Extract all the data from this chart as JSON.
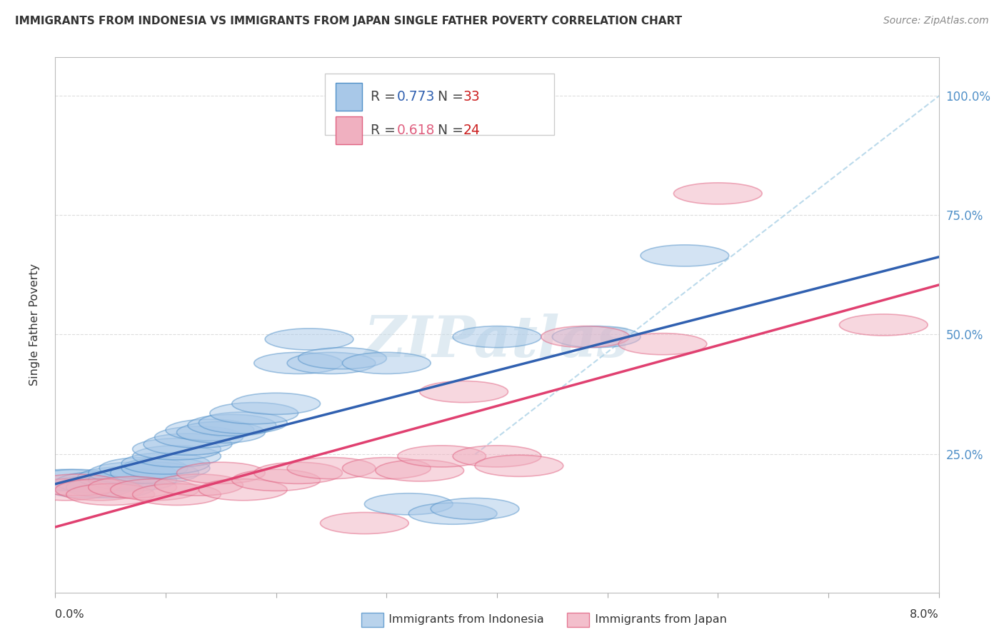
{
  "title": "IMMIGRANTS FROM INDONESIA VS IMMIGRANTS FROM JAPAN SINGLE FATHER POVERTY CORRELATION CHART",
  "source": "Source: ZipAtlas.com",
  "ylabel": "Single Father Poverty",
  "y_tick_labels": [
    "25.0%",
    "50.0%",
    "75.0%",
    "100.0%"
  ],
  "y_tick_values": [
    0.25,
    0.5,
    0.75,
    1.0
  ],
  "indonesia_scatter": [
    [
      0.001,
      0.195
    ],
    [
      0.002,
      0.195
    ],
    [
      0.003,
      0.18
    ],
    [
      0.004,
      0.19
    ],
    [
      0.005,
      0.18
    ],
    [
      0.006,
      0.2
    ],
    [
      0.007,
      0.195
    ],
    [
      0.007,
      0.21
    ],
    [
      0.008,
      0.22
    ],
    [
      0.009,
      0.21
    ],
    [
      0.01,
      0.22
    ],
    [
      0.01,
      0.23
    ],
    [
      0.011,
      0.245
    ],
    [
      0.011,
      0.26
    ],
    [
      0.012,
      0.27
    ],
    [
      0.013,
      0.285
    ],
    [
      0.014,
      0.3
    ],
    [
      0.015,
      0.295
    ],
    [
      0.016,
      0.31
    ],
    [
      0.017,
      0.315
    ],
    [
      0.018,
      0.335
    ],
    [
      0.02,
      0.355
    ],
    [
      0.022,
      0.44
    ],
    [
      0.023,
      0.49
    ],
    [
      0.025,
      0.44
    ],
    [
      0.026,
      0.45
    ],
    [
      0.03,
      0.44
    ],
    [
      0.032,
      0.145
    ],
    [
      0.036,
      0.125
    ],
    [
      0.038,
      0.135
    ],
    [
      0.04,
      0.495
    ],
    [
      0.049,
      0.495
    ],
    [
      0.057,
      0.665
    ]
  ],
  "japan_scatter": [
    [
      0.001,
      0.175
    ],
    [
      0.002,
      0.185
    ],
    [
      0.004,
      0.175
    ],
    [
      0.005,
      0.165
    ],
    [
      0.007,
      0.18
    ],
    [
      0.009,
      0.175
    ],
    [
      0.011,
      0.165
    ],
    [
      0.013,
      0.185
    ],
    [
      0.015,
      0.21
    ],
    [
      0.017,
      0.175
    ],
    [
      0.02,
      0.195
    ],
    [
      0.022,
      0.21
    ],
    [
      0.025,
      0.22
    ],
    [
      0.028,
      0.105
    ],
    [
      0.03,
      0.22
    ],
    [
      0.033,
      0.215
    ],
    [
      0.035,
      0.245
    ],
    [
      0.037,
      0.38
    ],
    [
      0.04,
      0.245
    ],
    [
      0.042,
      0.225
    ],
    [
      0.048,
      0.495
    ],
    [
      0.055,
      0.48
    ],
    [
      0.06,
      0.795
    ],
    [
      0.075,
      0.52
    ]
  ],
  "indonesia_color": "#a8c8e8",
  "indonesia_edge_color": "#5090c8",
  "japan_color": "#f0b0c0",
  "japan_edge_color": "#e06080",
  "indonesia_line_color": "#3060b0",
  "japan_line_color": "#e04070",
  "dashed_line_color": "#b0d4e8",
  "watermark_text": "ZIPatlas",
  "watermark_color": "#c8dce8",
  "bg_color": "#ffffff",
  "grid_color": "#dddddd",
  "right_axis_color": "#5090c8",
  "title_color": "#333333",
  "source_color": "#888888",
  "R_color": "#3060b0",
  "N_color": "#cc2020",
  "xlim": [
    0.0,
    0.08
  ],
  "ylim": [
    -0.04,
    1.08
  ]
}
